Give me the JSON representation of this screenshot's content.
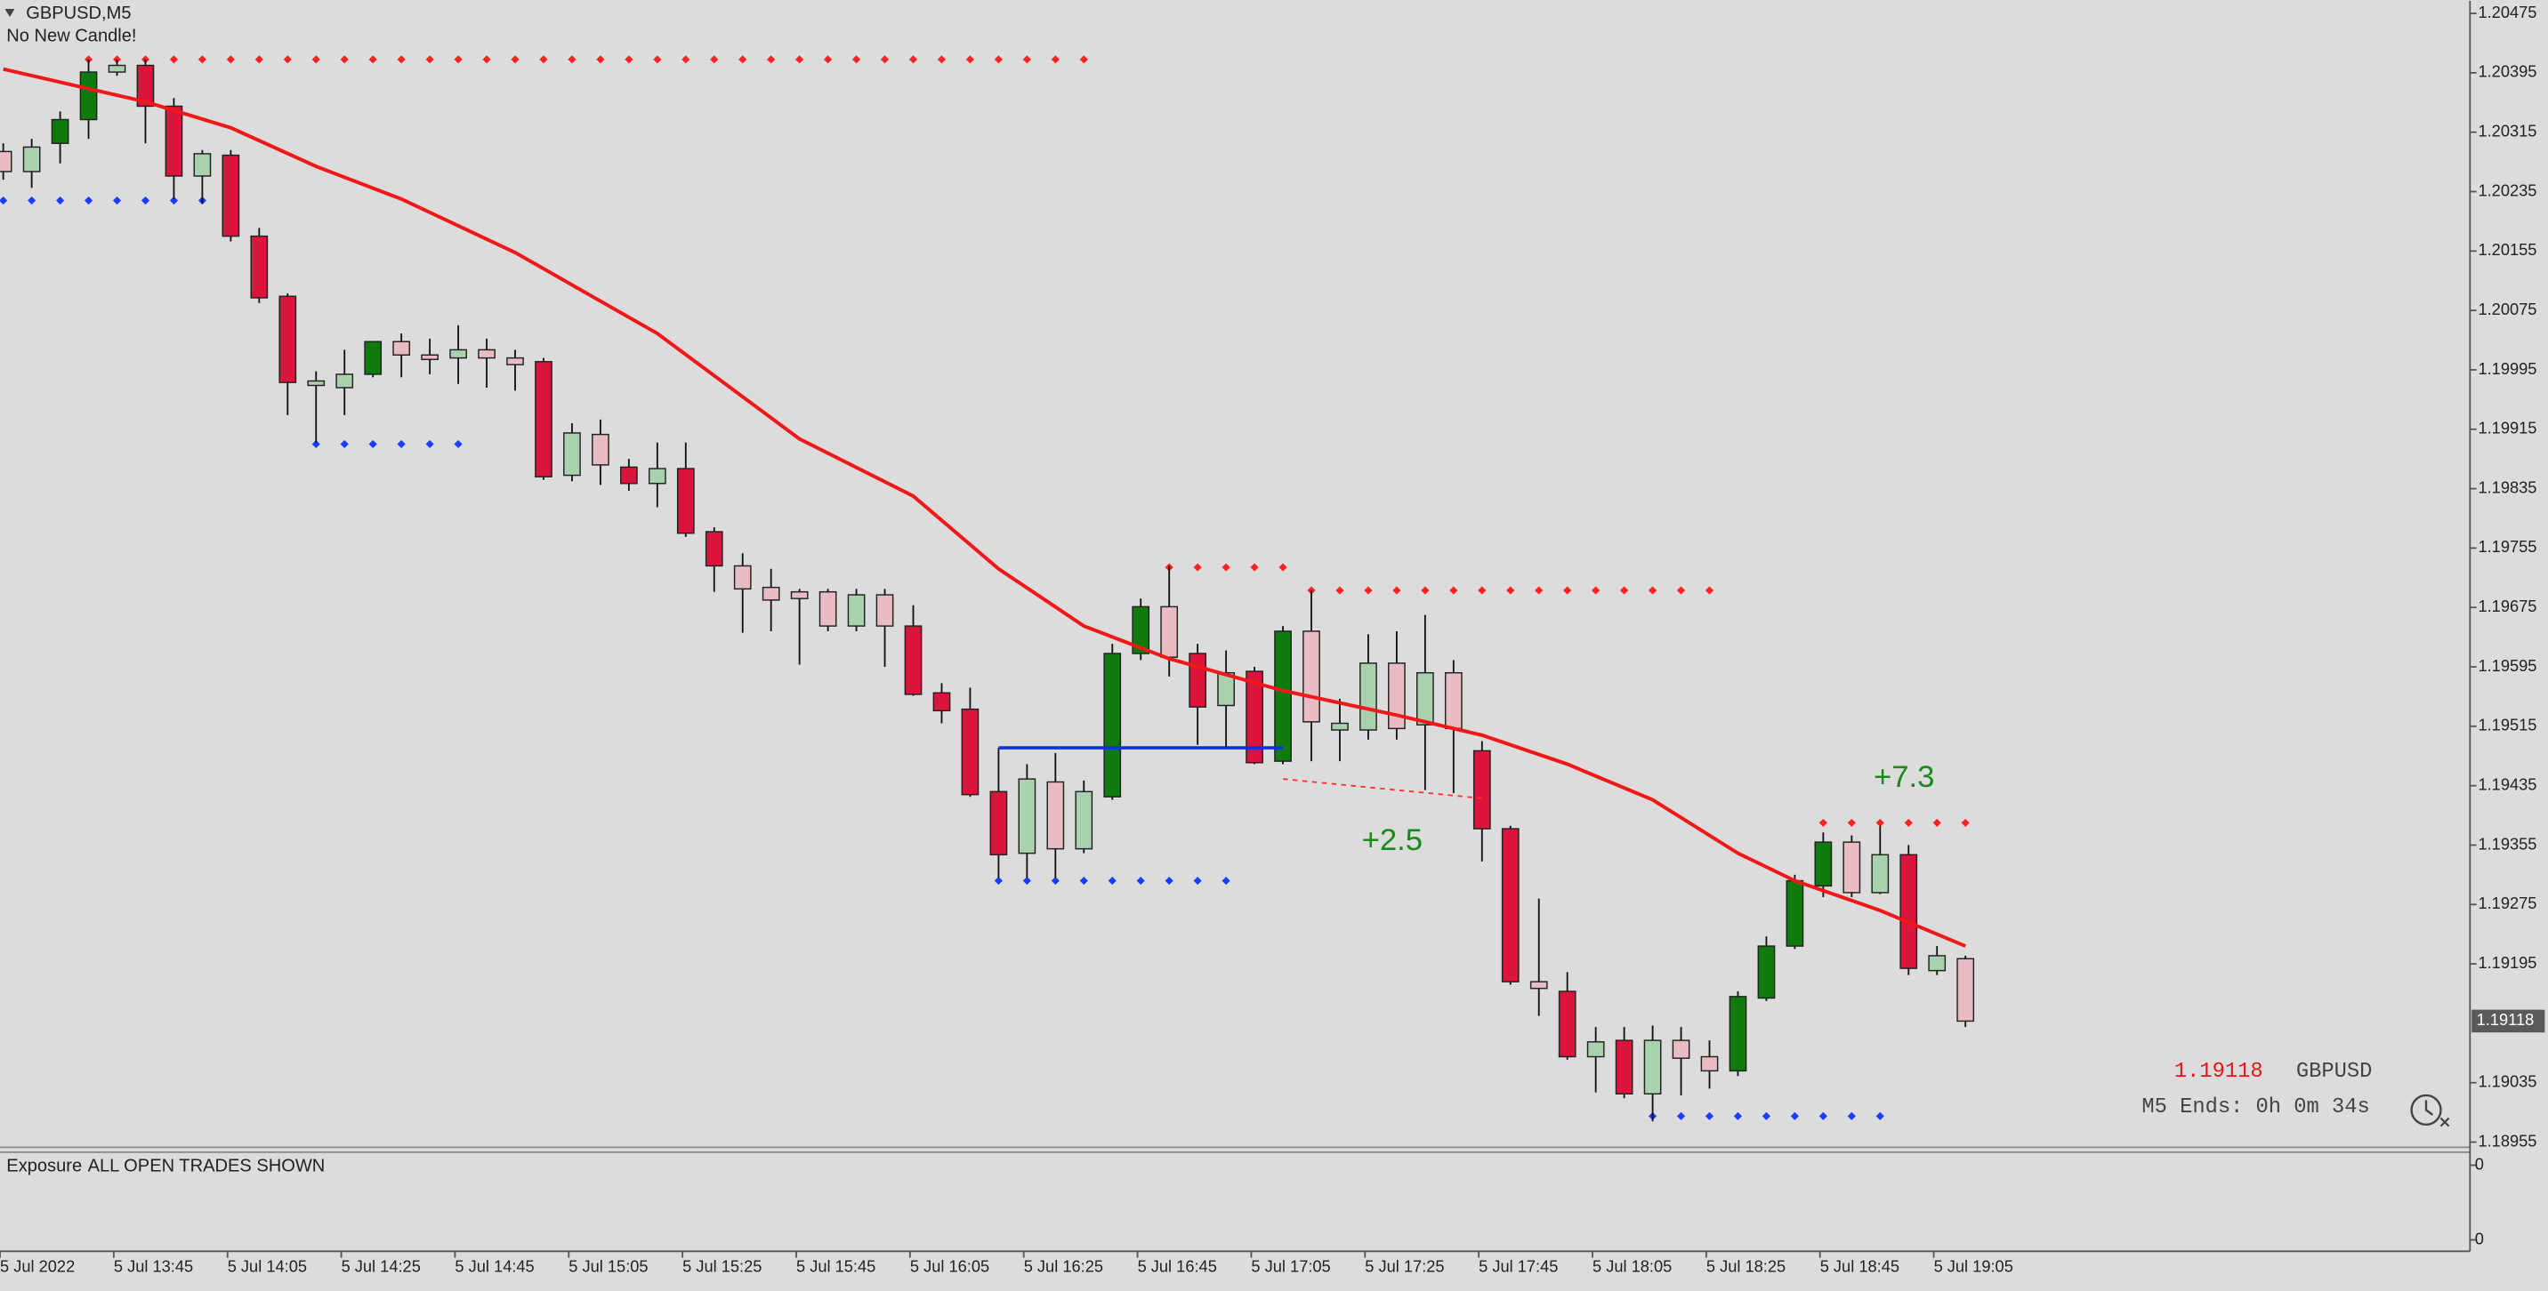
{
  "chart_data": {
    "type": "candlestick",
    "symbol_label": "GBPUSD,M5",
    "status": "No New Candle!",
    "categories": [
      "5 Jul 2022",
      null,
      null,
      null,
      "5 Jul 13:45",
      null,
      null,
      null,
      "5 Jul 14:05",
      null,
      null,
      null,
      "5 Jul 14:25",
      null,
      null,
      null,
      "5 Jul 14:45",
      null,
      null,
      null,
      "5 Jul 15:05",
      null,
      null,
      null,
      "5 Jul 15:25",
      null,
      null,
      null,
      "5 Jul 15:45",
      null,
      null,
      null,
      "5 Jul 16:05",
      null,
      null,
      null,
      "5 Jul 16:25",
      null,
      null,
      null,
      "5 Jul 16:45",
      null,
      null,
      null,
      "5 Jul 17:05",
      null,
      null,
      null,
      "5 Jul 17:25",
      null,
      null,
      null,
      "5 Jul 17:45",
      null,
      null,
      null,
      "5 Jul 18:05",
      null,
      null,
      null,
      "5 Jul 18:25",
      null,
      null,
      null,
      "5 Jul 18:45",
      null,
      null,
      null,
      "5 Jul 19:05",
      null
    ],
    "open": [
      1.20289,
      1.20262,
      1.203,
      1.20332,
      1.20396,
      1.20405,
      1.2035,
      1.20256,
      1.20284,
      1.20175,
      1.20094,
      1.19974,
      1.19971,
      1.19989,
      1.20033,
      1.20015,
      1.20011,
      1.20022,
      1.20011,
      1.20006,
      1.19853,
      1.19908,
      1.19864,
      1.19842,
      1.19862,
      1.19777,
      1.19731,
      1.19702,
      1.19696,
      1.19696,
      1.1965,
      1.19692,
      1.1965,
      1.1956,
      1.19538,
      1.19427,
      1.19344,
      1.1944,
      1.1935,
      1.1942,
      1.19613,
      1.19676,
      1.19613,
      1.19543,
      1.19589,
      1.19468,
      1.19643,
      1.1951,
      1.1951,
      1.196,
      1.19517,
      1.19587,
      1.19482,
      1.19377,
      1.19171,
      1.19158,
      1.1907,
      1.19092,
      1.1902,
      1.19092,
      1.1907,
      1.19051,
      1.19149,
      1.19219,
      1.193,
      1.19359,
      1.19291,
      1.19342,
      1.19186,
      1.19202
    ],
    "high": [
      1.203,
      1.20306,
      1.20343,
      1.20413,
      1.20413,
      1.20413,
      1.20361,
      1.20291,
      1.20291,
      1.20186,
      1.20098,
      1.19993,
      1.20022,
      1.20033,
      1.20044,
      1.20037,
      1.20055,
      1.20037,
      1.20022,
      1.20011,
      1.19923,
      1.19928,
      1.19875,
      1.19897,
      1.19897,
      1.19783,
      1.19748,
      1.19727,
      1.197,
      1.197,
      1.197,
      1.197,
      1.19678,
      1.19573,
      1.19567,
      1.19486,
      1.19464,
      1.19479,
      1.19442,
      1.19626,
      1.19687,
      1.19731,
      1.19626,
      1.19617,
      1.19595,
      1.1965,
      1.19698,
      1.19552,
      1.19639,
      1.19643,
      1.19665,
      1.19604,
      1.19495,
      1.19381,
      1.19283,
      1.19184,
      1.1911,
      1.1911,
      1.19112,
      1.1911,
      1.19092,
      1.19158,
      1.19232,
      1.19315,
      1.19372,
      1.19368,
      1.19381,
      1.19355,
      1.19219,
      1.19206
    ],
    "low": [
      1.20251,
      1.2024,
      1.20273,
      1.20306,
      1.20391,
      1.203,
      1.20225,
      1.20219,
      1.20168,
      1.20085,
      1.19934,
      1.19897,
      1.19934,
      1.19985,
      1.19985,
      1.19989,
      1.19976,
      1.19971,
      1.19967,
      1.19847,
      1.19845,
      1.1984,
      1.19832,
      1.1981,
      1.1977,
      1.19696,
      1.19641,
      1.19643,
      1.19598,
      1.19643,
      1.19643,
      1.19595,
      1.19556,
      1.19519,
      1.1942,
      1.19311,
      1.19311,
      1.19311,
      1.19344,
      1.19416,
      1.19604,
      1.19582,
      1.1949,
      1.19486,
      1.19464,
      1.19464,
      1.19468,
      1.19468,
      1.19497,
      1.19497,
      1.19429,
      1.19425,
      1.19333,
      1.19167,
      1.19125,
      1.19066,
      1.19022,
      1.19014,
      1.18983,
      1.19018,
      1.19027,
      1.19044,
      1.19145,
      1.19215,
      1.19285,
      1.19285,
      1.19289,
      1.1918,
      1.1918,
      1.1911
    ],
    "close": [
      1.20262,
      1.20295,
      1.20332,
      1.20396,
      1.20405,
      1.2035,
      1.20256,
      1.20286,
      1.20175,
      1.20092,
      1.19978,
      1.1998,
      1.19989,
      1.20033,
      1.20015,
      1.20009,
      1.20022,
      1.20011,
      1.20002,
      1.19851,
      1.1991,
      1.19867,
      1.19842,
      1.19862,
      1.19775,
      1.19731,
      1.197,
      1.19685,
      1.19687,
      1.1965,
      1.19692,
      1.1965,
      1.19558,
      1.19536,
      1.19423,
      1.19342,
      1.19444,
      1.1935,
      1.19427,
      1.19613,
      1.19676,
      1.19608,
      1.19541,
      1.19587,
      1.19466,
      1.19643,
      1.19521,
      1.19519,
      1.196,
      1.19512,
      1.19587,
      1.19512,
      1.19377,
      1.19171,
      1.19162,
      1.1907,
      1.1909,
      1.1902,
      1.19092,
      1.19068,
      1.19051,
      1.19151,
      1.19219,
      1.19307,
      1.19359,
      1.19291,
      1.19342,
      1.19189,
      1.19206,
      1.19118
    ],
    "colors": [
      "#e9bcc3",
      "#a9d1ad",
      "#0f7b0f",
      "#0f7b0f",
      "#a9d1ad",
      "#dc143c",
      "#dc143c",
      "#a9d1ad",
      "#dc143c",
      "#dc143c",
      "#dc143c",
      "#a9d1ad",
      "#a9d1ad",
      "#0f7b0f",
      "#e9bcc3",
      "#e9bcc3",
      "#a9d1ad",
      "#e9bcc3",
      "#e9bcc3",
      "#dc143c",
      "#a9d1ad",
      "#e9bcc3",
      "#dc143c",
      "#a9d1ad",
      "#dc143c",
      "#dc143c",
      "#e9bcc3",
      "#e9bcc3",
      "#e9bcc3",
      "#e9bcc3",
      "#a9d1ad",
      "#e9bcc3",
      "#dc143c",
      "#dc143c",
      "#dc143c",
      "#dc143c",
      "#a9d1ad",
      "#e9bcc3",
      "#a9d1ad",
      "#0f7b0f",
      "#0f7b0f",
      "#e9bcc3",
      "#dc143c",
      "#a9d1ad",
      "#dc143c",
      "#0f7b0f",
      "#e9bcc3",
      "#a9d1ad",
      "#a9d1ad",
      "#e9bcc3",
      "#a9d1ad",
      "#e9bcc3",
      "#dc143c",
      "#dc143c",
      "#e9bcc3",
      "#dc143c",
      "#a9d1ad",
      "#dc143c",
      "#a9d1ad",
      "#e9bcc3",
      "#e9bcc3",
      "#0f7b0f",
      "#0f7b0f",
      "#0f7b0f",
      "#0f7b0f",
      "#e9bcc3",
      "#a9d1ad",
      "#dc143c",
      "#a9d1ad",
      "#e9bcc3"
    ],
    "ma": {
      "color": "#f01818",
      "x": [
        0,
        5,
        8,
        11,
        14,
        18,
        23,
        28,
        32,
        35,
        38,
        41,
        45,
        49,
        52,
        55,
        58,
        61,
        63,
        66,
        69
      ],
      "values": [
        1.204,
        1.20356,
        1.20321,
        1.20269,
        1.20225,
        1.20153,
        1.20044,
        1.19902,
        1.19825,
        1.19727,
        1.1965,
        1.19606,
        1.19563,
        1.1953,
        1.19503,
        1.19464,
        1.19416,
        1.19344,
        1.19307,
        1.19267,
        1.19219
      ]
    },
    "levels": [
      {
        "color": "#ff2020",
        "value": 1.20413,
        "from": 3,
        "to": 38
      },
      {
        "color": "#1a3cff",
        "value": 1.20223,
        "from": 0,
        "to": 7
      },
      {
        "color": "#1a3cff",
        "value": 1.19895,
        "from": 11,
        "to": 16
      },
      {
        "color": "#ff2020",
        "value": 1.19729,
        "from": 41,
        "to": 45
      },
      {
        "color": "#ff2020",
        "value": 1.19698,
        "from": 46,
        "to": 60
      },
      {
        "color": "#1a3cff",
        "value": 1.19307,
        "from": 35,
        "to": 43
      },
      {
        "color": "#1a3cff",
        "value": 1.1899,
        "from": 58,
        "to": 66
      },
      {
        "color": "#ff2020",
        "value": 1.19385,
        "from": 64,
        "to": 69
      }
    ],
    "trades": [
      {
        "color": "#1030e0",
        "from": 35,
        "to": 45,
        "values": [
          1.19486,
          1.19486
        ],
        "dashed": false
      },
      {
        "color": "#ff3030",
        "from": 45,
        "to": 52,
        "values": [
          1.19444,
          1.19418
        ],
        "dashed": true
      }
    ],
    "annotations": [
      {
        "text": "+2.5",
        "color": "#1a8a1a"
      },
      {
        "text": "+7.3",
        "color": "#1a8a1a"
      }
    ],
    "ylim": [
      1.18948,
      1.20492
    ],
    "yticks": [
      1.20475,
      1.20395,
      1.20315,
      1.20235,
      1.20155,
      1.20075,
      1.19995,
      1.19915,
      1.19835,
      1.19755,
      1.19675,
      1.19595,
      1.19515,
      1.19435,
      1.19355,
      1.19275,
      1.19195,
      1.19035,
      1.18955
    ],
    "current_price": 1.19118,
    "symbol": "GBPUSD",
    "timer": "M5 Ends: 0h 0m 34s",
    "sub_panel": {
      "label": "Exposure",
      "text": "ALL OPEN TRADES SHOWN",
      "yticks": [
        0,
        0
      ]
    }
  }
}
